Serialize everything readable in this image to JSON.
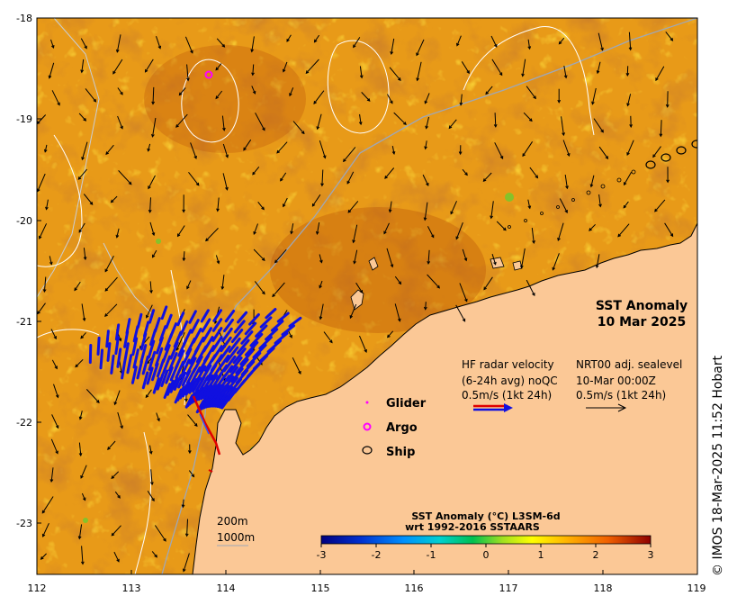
{
  "map": {
    "title_line1": "SST Anomaly",
    "title_line2": "10 Mar 2025",
    "lat_ticks": [
      "-18",
      "-19",
      "-20",
      "-21",
      "-22",
      "-23"
    ],
    "lon_ticks": [
      "112",
      "113",
      "114",
      "115",
      "116",
      "117",
      "118",
      "119"
    ],
    "copyright": "© IMOS 18-Mar-2025 11:52 Hobart"
  },
  "legend": {
    "hf_line1": "HF radar velocity",
    "hf_line2": "(6-24h avg) noQC",
    "hf_line3": "0.5m/s (1kt 24h)",
    "nrt_line1": "NRT00 adj. sealevel",
    "nrt_line2": "10-Mar 00:00Z",
    "nrt_line3": "0.5m/s (1kt 24h)",
    "glider": "Glider",
    "argo": "Argo",
    "ship": "Ship",
    "contour1": "200m",
    "contour2": "1000m"
  },
  "colorbar": {
    "title_line1": "SST Anomaly (°C) L3SM-6d",
    "title_line2": "wrt 1992-2016 SSTAARS",
    "ticks": [
      "-3",
      "-2",
      "-1",
      "0",
      "1",
      "2",
      "3"
    ]
  },
  "colors": {
    "land": "#fbc896",
    "sst_warm": "#e59313",
    "sst_hot": "#b8510a",
    "hf_blue": "#1010e0",
    "argo": "#ff00ff",
    "isobath": "#9ea7b8"
  }
}
